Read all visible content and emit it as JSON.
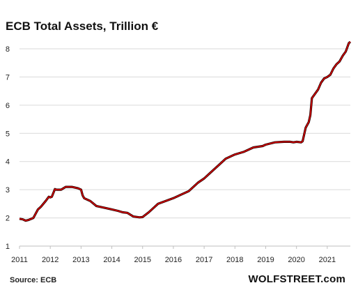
{
  "source": "Source: ECB",
  "brand": "WOLFSTREET.com",
  "chart_data": {
    "type": "line",
    "title": "ECB Total Assets, Trillion €",
    "xlabel": "",
    "ylabel": "",
    "xlim": [
      2011.0,
      2021.75
    ],
    "ylim": [
      1,
      8.3
    ],
    "y_ticks": [
      1,
      2,
      3,
      4,
      5,
      6,
      7,
      8
    ],
    "x_ticks": [
      2011,
      2012,
      2013,
      2014,
      2015,
      2016,
      2017,
      2018,
      2019,
      2020,
      2021
    ],
    "grid": "horizontal",
    "line_color": "#cc0000",
    "series": [
      {
        "x": [
          2011.0,
          2011.1,
          2011.2,
          2011.3,
          2011.45,
          2011.6,
          2011.7,
          2011.85,
          2011.95,
          2012.0,
          2012.05,
          2012.15,
          2012.2,
          2012.35,
          2012.5,
          2012.7,
          2012.9,
          2013.0,
          2013.05,
          2013.1,
          2013.3,
          2013.5,
          2013.8,
          2014.0,
          2014.2,
          2014.35,
          2014.5,
          2014.7,
          2014.9,
          2015.0,
          2015.2,
          2015.5,
          2015.8,
          2016.0,
          2016.2,
          2016.5,
          2016.8,
          2017.0,
          2017.15,
          2017.3,
          2017.5,
          2017.7,
          2017.9,
          2018.0,
          2018.3,
          2018.6,
          2018.9,
          2019.0,
          2019.3,
          2019.6,
          2019.8,
          2019.9,
          2020.0,
          2020.15,
          2020.2,
          2020.3,
          2020.4,
          2020.45,
          2020.5,
          2020.6,
          2020.7,
          2020.8,
          2020.9,
          2021.0,
          2021.1,
          2021.2,
          2021.3,
          2021.4,
          2021.5,
          2021.6,
          2021.65,
          2021.7,
          2021.75
        ],
        "y": [
          1.97,
          1.95,
          1.9,
          1.93,
          2.0,
          2.3,
          2.4,
          2.6,
          2.75,
          2.73,
          2.75,
          3.02,
          3.0,
          3.0,
          3.1,
          3.1,
          3.05,
          3.0,
          2.8,
          2.7,
          2.6,
          2.42,
          2.35,
          2.3,
          2.25,
          2.2,
          2.18,
          2.05,
          2.02,
          2.03,
          2.2,
          2.5,
          2.62,
          2.7,
          2.8,
          2.95,
          3.25,
          3.4,
          3.55,
          3.7,
          3.9,
          4.1,
          4.2,
          4.25,
          4.35,
          4.5,
          4.55,
          4.6,
          4.68,
          4.7,
          4.7,
          4.68,
          4.7,
          4.68,
          4.72,
          5.2,
          5.4,
          5.65,
          6.25,
          6.4,
          6.55,
          6.8,
          6.95,
          7.0,
          7.08,
          7.3,
          7.45,
          7.55,
          7.75,
          7.9,
          8.05,
          8.2,
          8.25
        ]
      }
    ]
  }
}
